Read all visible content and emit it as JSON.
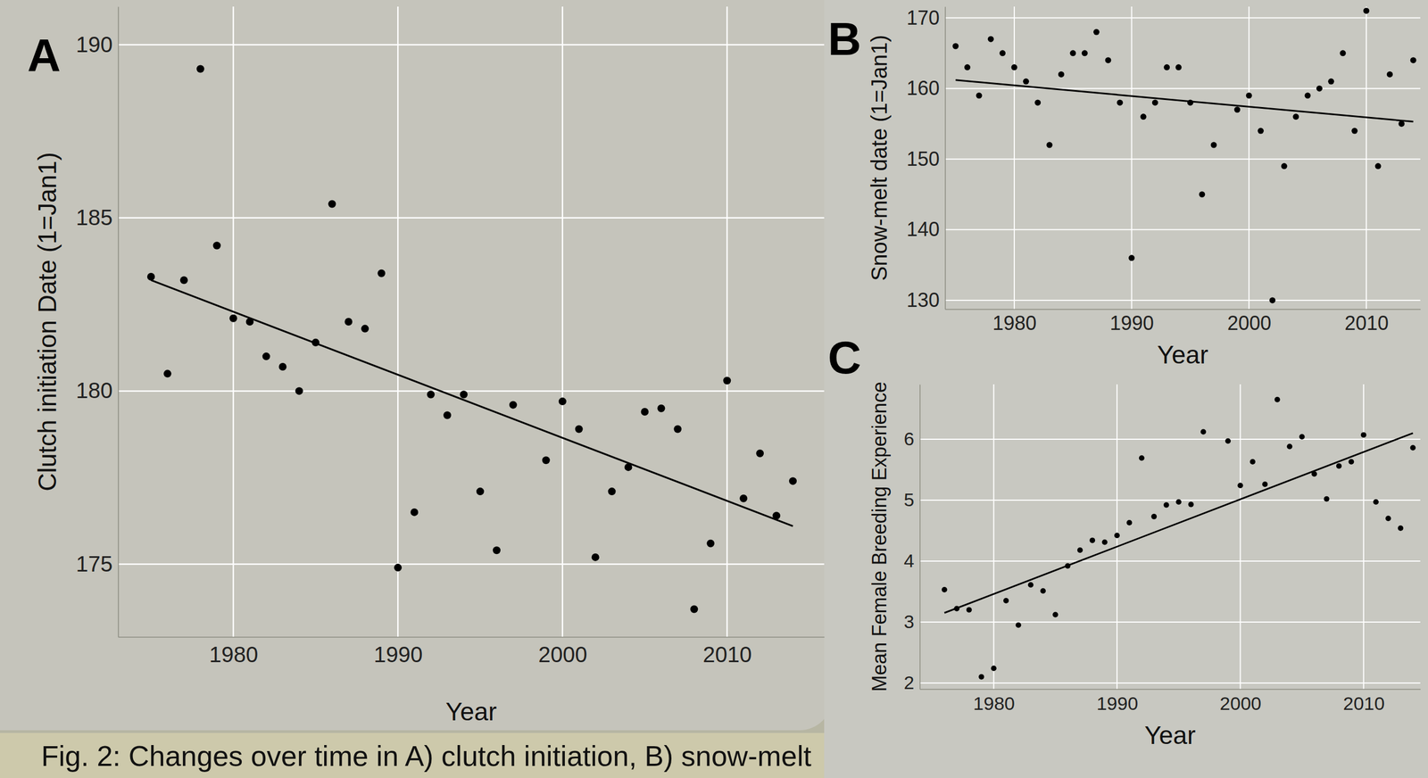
{
  "chart_data": [
    {
      "type": "scatter",
      "panel": "A",
      "x_label": "Year",
      "y_label": "Clutch initiation Date (1=Jan1)",
      "xlim": [
        1973,
        2015.9
      ],
      "ylim": [
        172.9,
        191.1
      ],
      "xticks": [
        1980,
        1990,
        2000,
        2010
      ],
      "yticks": [
        175,
        180,
        185,
        190
      ],
      "grid": true,
      "series": [
        {
          "type": "scatter",
          "marker": "circle",
          "color": "#000000",
          "x": [
            1975,
            1976,
            1977,
            1978,
            1979,
            1980,
            1981,
            1982,
            1983,
            1984,
            1985,
            1986,
            1987,
            1988,
            1989,
            1990,
            1991,
            1992,
            1993,
            1994,
            1995,
            1996,
            1997,
            1999,
            2000,
            2001,
            2002,
            2003,
            2004,
            2005,
            2006,
            2007,
            2008,
            2009,
            2010,
            2011,
            2012,
            2013,
            2014
          ],
          "values": [
            183.3,
            180.5,
            183.2,
            189.3,
            184.2,
            182.1,
            182.0,
            181.0,
            180.7,
            180.0,
            181.4,
            185.4,
            182.0,
            181.8,
            183.4,
            174.9,
            176.5,
            179.9,
            179.3,
            179.9,
            177.1,
            175.4,
            179.6,
            178.0,
            179.7,
            178.9,
            175.2,
            177.1,
            177.8,
            179.4,
            179.5,
            178.9,
            173.7,
            175.6,
            180.3,
            176.9,
            178.2,
            176.4,
            177.4
          ]
        },
        {
          "type": "line",
          "line_style": "solid",
          "color": "#000000",
          "x": [
            1975,
            2014
          ],
          "values": [
            183.2,
            176.1
          ]
        }
      ]
    },
    {
      "type": "scatter",
      "panel": "B",
      "x_label": "Year",
      "y_label": "Snow-melt date (1=Jan1)",
      "xlim": [
        1974.1,
        2014.6
      ],
      "ylim": [
        128.75,
        171.6
      ],
      "xticks": [
        1980,
        1990,
        2000,
        2010
      ],
      "yticks": [
        130,
        140,
        150,
        160,
        170
      ],
      "grid": true,
      "series": [
        {
          "type": "scatter",
          "marker": "circle",
          "color": "#000000",
          "x": [
            1975,
            1976,
            1977,
            1978,
            1979,
            1980,
            1981,
            1982,
            1983,
            1984,
            1985,
            1986,
            1987,
            1988,
            1989,
            1990,
            1991,
            1992,
            1993,
            1994,
            1995,
            1996,
            1997,
            1999,
            2000,
            2001,
            2002,
            2003,
            2004,
            2005,
            2006,
            2007,
            2008,
            2009,
            2010,
            2011,
            2012,
            2013,
            2014
          ],
          "values": [
            166,
            163,
            159,
            167,
            165,
            163,
            161,
            158,
            152,
            162,
            165,
            165,
            168,
            164,
            158,
            136,
            156,
            158,
            163,
            163,
            158,
            145,
            152,
            157,
            159,
            154,
            130,
            149,
            156,
            159,
            160,
            161,
            165,
            154,
            171,
            149,
            162,
            155,
            164
          ]
        },
        {
          "type": "line",
          "line_style": "solid",
          "color": "#000000",
          "x": [
            1975,
            2014
          ],
          "values": [
            161.2,
            155.3
          ]
        }
      ]
    },
    {
      "type": "scatter",
      "panel": "C",
      "x_label": "Year",
      "y_label": "Mean Female Breeding Experience",
      "xlim": [
        1974,
        2014.6
      ],
      "ylim": [
        1.9,
        6.9
      ],
      "xticks": [
        1980,
        1990,
        2000,
        2010
      ],
      "yticks": [
        2,
        3,
        4,
        5,
        6
      ],
      "grid": true,
      "series": [
        {
          "type": "scatter",
          "marker": "circle",
          "color": "#000000",
          "x": [
            1976,
            1977,
            1978,
            1979,
            1980,
            1981,
            1982,
            1983,
            1984,
            1985,
            1986,
            1987,
            1988,
            1989,
            1990,
            1991,
            1992,
            1993,
            1994,
            1995,
            1996,
            1997,
            1999,
            2000,
            2001,
            2002,
            2003,
            2004,
            2005,
            2006,
            2007,
            2008,
            2009,
            2010,
            2011,
            2012,
            2013,
            2014
          ],
          "values": [
            3.53,
            3.22,
            3.2,
            2.1,
            2.24,
            3.35,
            2.95,
            3.61,
            3.51,
            3.12,
            3.92,
            4.18,
            4.34,
            4.31,
            4.42,
            4.63,
            5.69,
            4.73,
            4.92,
            4.97,
            4.93,
            6.12,
            5.97,
            5.24,
            5.63,
            5.26,
            6.65,
            5.88,
            6.04,
            5.43,
            5.02,
            5.56,
            5.63,
            6.07,
            4.97,
            4.7,
            4.54,
            5.86
          ]
        },
        {
          "type": "line",
          "line_style": "solid",
          "color": "#000000",
          "x": [
            1976,
            2014
          ],
          "values": [
            3.15,
            6.1
          ]
        }
      ]
    }
  ],
  "caption": "Fig. 2: Changes over time in A) clutch initiation, B) snow-melt"
}
